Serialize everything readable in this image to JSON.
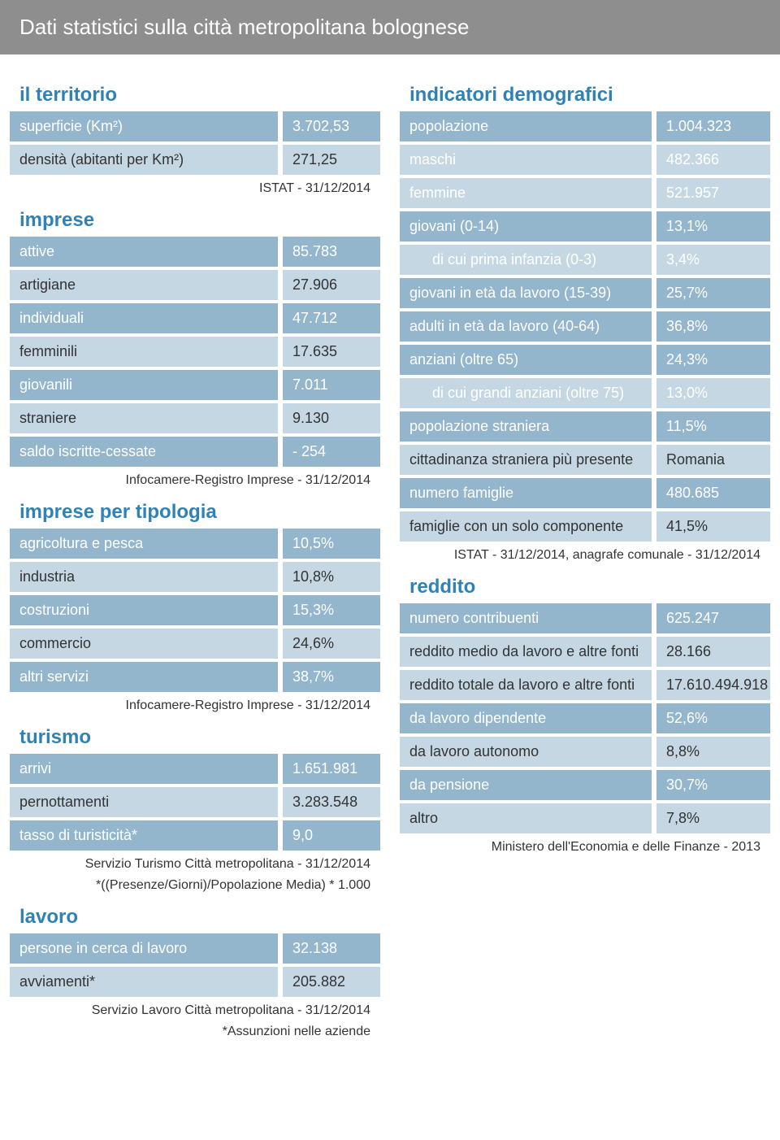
{
  "header": "Dati statistici sulla città metropolitana bolognese",
  "colors": {
    "header_bg": "#8e8e8e",
    "section_title": "#2f82b5",
    "row_dark": "#93b6cd",
    "row_light": "#c5d7e3",
    "text_dark": "#333333",
    "text_white": "#ffffff"
  },
  "left": {
    "territorio": {
      "title": "il territorio",
      "rows": [
        {
          "label": "superficie (Km²)",
          "value": "3.702,53"
        },
        {
          "label": "densità (abitanti per Km²)",
          "value": "271,25"
        }
      ],
      "source": "ISTAT - 31/12/2014"
    },
    "imprese": {
      "title": "imprese",
      "rows": [
        {
          "label": "attive",
          "value": "85.783"
        },
        {
          "label": "artigiane",
          "value": "27.906"
        },
        {
          "label": "individuali",
          "value": "47.712"
        },
        {
          "label": "femminili",
          "value": "17.635"
        },
        {
          "label": "giovanili",
          "value": "7.011"
        },
        {
          "label": "straniere",
          "value": "9.130"
        },
        {
          "label": "saldo iscritte-cessate",
          "value": "- 254"
        }
      ],
      "source": "Infocamere-Registro Imprese - 31/12/2014"
    },
    "tipologia": {
      "title": "imprese per tipologia",
      "rows": [
        {
          "label": "agricoltura e pesca",
          "value": "10,5%"
        },
        {
          "label": "industria",
          "value": "10,8%"
        },
        {
          "label": "costruzioni",
          "value": "15,3%"
        },
        {
          "label": "commercio",
          "value": "24,6%"
        },
        {
          "label": "altri servizi",
          "value": "38,7%"
        }
      ],
      "source": "Infocamere-Registro Imprese - 31/12/2014"
    },
    "turismo": {
      "title": "turismo",
      "rows": [
        {
          "label": "arrivi",
          "value": "1.651.981"
        },
        {
          "label": "pernottamenti",
          "value": "3.283.548"
        },
        {
          "label": "tasso di turisticità*",
          "value": "9,0"
        }
      ],
      "source": "Servizio Turismo Città metropolitana - 31/12/2014",
      "footnote": "*((Presenze/Giorni)/Popolazione Media) * 1.000"
    },
    "lavoro": {
      "title": "lavoro",
      "rows": [
        {
          "label": "persone in cerca di lavoro",
          "value": "32.138"
        },
        {
          "label": "avviamenti*",
          "value": "205.882"
        }
      ],
      "source": "Servizio Lavoro Città metropolitana - 31/12/2014",
      "footnote": "*Assunzioni nelle aziende"
    }
  },
  "right": {
    "demografici": {
      "title": "indicatori demografici",
      "rows": [
        {
          "label": "popolazione",
          "value": "1.004.323",
          "shade": "dk"
        },
        {
          "label": "maschi",
          "value": "482.366",
          "shade": "lt"
        },
        {
          "label": "femmine",
          "value": "521.957",
          "shade": "lt"
        },
        {
          "label": "giovani (0-14)",
          "value": "13,1%",
          "shade": "dk"
        },
        {
          "label": "di cui prima infanzia (0-3)",
          "value": "3,4%",
          "shade": "lt",
          "indent": true
        },
        {
          "label": "giovani in età da lavoro (15-39)",
          "value": "25,7%",
          "shade": "dk"
        },
        {
          "label": "adulti in età da lavoro (40-64)",
          "value": "36,8%",
          "shade": "dk"
        },
        {
          "label": "anziani (oltre 65)",
          "value": "24,3%",
          "shade": "dk"
        },
        {
          "label": "di cui grandi anziani (oltre 75)",
          "value": "13,0%",
          "shade": "lt",
          "indent": true
        },
        {
          "label": "popolazione straniera",
          "value": "11,5%",
          "shade": "dk"
        },
        {
          "label": "cittadinanza straniera più presente",
          "value": "Romania",
          "shade": "lt"
        },
        {
          "label": "numero famiglie",
          "value": "480.685",
          "shade": "dk"
        },
        {
          "label": "famiglie con un solo componente",
          "value": "41,5%",
          "shade": "lt"
        }
      ],
      "source": "ISTAT - 31/12/2014, anagrafe comunale - 31/12/2014"
    },
    "reddito": {
      "title": "reddito",
      "rows": [
        {
          "label": "numero contribuenti",
          "value": "625.247",
          "shade": "dk"
        },
        {
          "label": "reddito medio da lavoro e altre fonti",
          "value": "28.166",
          "shade": "lt"
        },
        {
          "label": "reddito totale da lavoro e altre fonti",
          "value": "17.610.494.918",
          "shade": "lt"
        },
        {
          "label": "da lavoro dipendente",
          "value": "52,6%",
          "shade": "dk"
        },
        {
          "label": "da lavoro autonomo",
          "value": "8,8%",
          "shade": "lt"
        },
        {
          "label": "da pensione",
          "value": "30,7%",
          "shade": "dk"
        },
        {
          "label": "altro",
          "value": "7,8%",
          "shade": "lt"
        }
      ],
      "source": "Ministero dell'Economia e delle Finanze - 2013"
    }
  }
}
